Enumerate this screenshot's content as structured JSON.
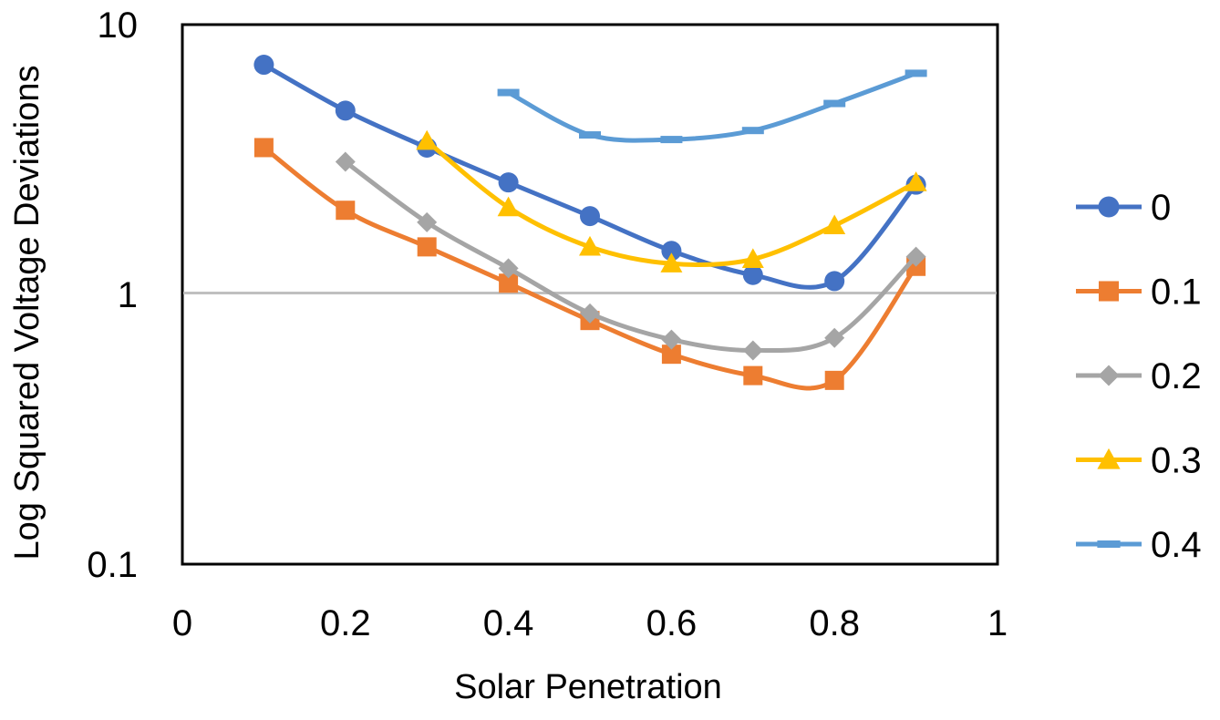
{
  "chart_data": {
    "type": "line",
    "title": "",
    "xlabel": "Solar Penetration",
    "ylabel": "Log Squared Voltage Deviations",
    "xlim": [
      0,
      1
    ],
    "ylim": [
      0.1,
      10
    ],
    "yscale": "log",
    "x_ticks": [
      "0",
      "0.2",
      "0.4",
      "0.6",
      "0.8",
      "1"
    ],
    "y_ticks": [
      "0.1",
      "1",
      "10"
    ],
    "legend_position": "right",
    "series": [
      {
        "name": "0",
        "color": "#4472c4",
        "marker": "circle",
        "x": [
          0.1,
          0.2,
          0.3,
          0.4,
          0.5,
          0.6,
          0.7,
          0.8,
          0.9
        ],
        "values": [
          7.1,
          4.8,
          3.5,
          2.6,
          1.95,
          1.45,
          1.18,
          1.12,
          2.55
        ]
      },
      {
        "name": "0.1",
        "color": "#ed7d31",
        "marker": "square",
        "x": [
          0.1,
          0.2,
          0.3,
          0.4,
          0.5,
          0.6,
          0.7,
          0.8,
          0.9
        ],
        "values": [
          3.5,
          2.05,
          1.5,
          1.1,
          0.8,
          0.6,
          0.5,
          0.48,
          1.27
        ]
      },
      {
        "name": "0.2",
        "color": "#a5a5a5",
        "marker": "diamond",
        "x": [
          0.2,
          0.3,
          0.4,
          0.5,
          0.6,
          0.7,
          0.8,
          0.9
        ],
        "values": [
          3.1,
          1.85,
          1.25,
          0.85,
          0.68,
          0.62,
          0.69,
          1.38
        ]
      },
      {
        "name": "0.3",
        "color": "#ffc000",
        "marker": "triangle",
        "x": [
          0.3,
          0.4,
          0.5,
          0.6,
          0.7,
          0.8,
          0.9
        ],
        "values": [
          3.7,
          2.1,
          1.5,
          1.3,
          1.35,
          1.8,
          2.6
        ]
      },
      {
        "name": "0.4",
        "color": "#5b9bd5",
        "marker": "dash",
        "x": [
          0.4,
          0.5,
          0.6,
          0.7,
          0.8,
          0.9
        ],
        "values": [
          5.6,
          3.9,
          3.75,
          4.05,
          5.1,
          6.6
        ]
      }
    ]
  }
}
